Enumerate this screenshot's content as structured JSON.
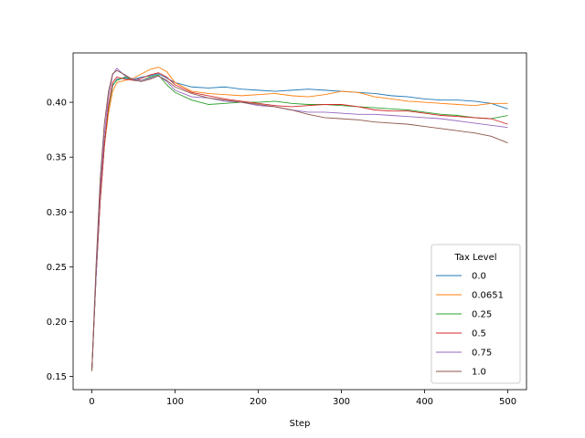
{
  "chart_data": {
    "type": "line",
    "title": "",
    "xlabel": "Step",
    "ylabel": "",
    "xlim": [
      -22.5,
      522.5
    ],
    "ylim": [
      0.138,
      0.445
    ],
    "xticks": [
      0,
      100,
      200,
      300,
      400,
      500
    ],
    "xtick_labels": [
      "0",
      "100",
      "200",
      "300",
      "400",
      "500"
    ],
    "yticks": [
      0.15,
      0.2,
      0.25,
      0.3,
      0.35,
      0.4
    ],
    "ytick_labels": [
      "0.15",
      "0.20",
      "0.25",
      "0.30",
      "0.35",
      "0.40"
    ],
    "grid": false,
    "legend": {
      "title": "Tax Level",
      "placement": "lower right"
    },
    "series": [
      {
        "name": "0.0",
        "color": "#1f77b4",
        "x": [
          0,
          5,
          10,
          15,
          20,
          25,
          30,
          40,
          50,
          60,
          70,
          80,
          90,
          100,
          120,
          140,
          160,
          180,
          200,
          220,
          240,
          260,
          280,
          300,
          320,
          340,
          360,
          380,
          400,
          420,
          440,
          460,
          480,
          500
        ],
        "y": [
          0.155,
          0.24,
          0.31,
          0.36,
          0.395,
          0.415,
          0.421,
          0.422,
          0.421,
          0.423,
          0.424,
          0.426,
          0.422,
          0.418,
          0.414,
          0.413,
          0.414,
          0.412,
          0.411,
          0.41,
          0.411,
          0.412,
          0.411,
          0.41,
          0.409,
          0.408,
          0.406,
          0.405,
          0.403,
          0.402,
          0.402,
          0.401,
          0.399,
          0.394
        ]
      },
      {
        "name": "0.0651",
        "color": "#ff7f0e",
        "x": [
          0,
          5,
          10,
          15,
          20,
          25,
          30,
          40,
          50,
          60,
          70,
          80,
          90,
          100,
          120,
          140,
          160,
          180,
          200,
          220,
          240,
          260,
          280,
          300,
          320,
          340,
          360,
          380,
          400,
          420,
          440,
          460,
          480,
          500
        ],
        "y": [
          0.155,
          0.24,
          0.31,
          0.36,
          0.39,
          0.41,
          0.418,
          0.42,
          0.422,
          0.426,
          0.43,
          0.432,
          0.428,
          0.418,
          0.41,
          0.408,
          0.407,
          0.406,
          0.407,
          0.408,
          0.406,
          0.405,
          0.407,
          0.41,
          0.409,
          0.405,
          0.403,
          0.401,
          0.4,
          0.399,
          0.398,
          0.397,
          0.399,
          0.399
        ]
      },
      {
        "name": "0.25",
        "color": "#2ca02c",
        "x": [
          0,
          5,
          10,
          15,
          20,
          25,
          30,
          40,
          50,
          60,
          70,
          80,
          90,
          100,
          120,
          140,
          160,
          180,
          200,
          220,
          240,
          260,
          280,
          300,
          320,
          340,
          360,
          380,
          400,
          420,
          440,
          460,
          480,
          500
        ],
        "y": [
          0.155,
          0.24,
          0.31,
          0.36,
          0.395,
          0.416,
          0.42,
          0.423,
          0.421,
          0.42,
          0.423,
          0.425,
          0.416,
          0.409,
          0.402,
          0.398,
          0.399,
          0.4,
          0.4,
          0.401,
          0.399,
          0.398,
          0.398,
          0.397,
          0.396,
          0.395,
          0.394,
          0.393,
          0.391,
          0.389,
          0.388,
          0.386,
          0.385,
          0.388
        ]
      },
      {
        "name": "0.5",
        "color": "#d62728",
        "x": [
          0,
          5,
          10,
          15,
          20,
          25,
          30,
          40,
          50,
          60,
          70,
          80,
          90,
          100,
          120,
          140,
          160,
          180,
          200,
          220,
          240,
          260,
          280,
          300,
          320,
          340,
          360,
          380,
          400,
          420,
          440,
          460,
          480,
          500
        ],
        "y": [
          0.155,
          0.24,
          0.31,
          0.36,
          0.397,
          0.418,
          0.423,
          0.421,
          0.42,
          0.422,
          0.425,
          0.427,
          0.423,
          0.416,
          0.409,
          0.406,
          0.403,
          0.401,
          0.399,
          0.397,
          0.396,
          0.397,
          0.398,
          0.398,
          0.396,
          0.393,
          0.392,
          0.392,
          0.39,
          0.388,
          0.387,
          0.386,
          0.385,
          0.38
        ]
      },
      {
        "name": "0.75",
        "color": "#9467bd",
        "x": [
          0,
          5,
          10,
          15,
          20,
          25,
          30,
          40,
          50,
          60,
          70,
          80,
          90,
          100,
          120,
          140,
          160,
          180,
          200,
          220,
          240,
          260,
          280,
          300,
          320,
          340,
          360,
          380,
          400,
          420,
          440,
          460,
          480,
          500
        ],
        "y": [
          0.155,
          0.24,
          0.32,
          0.37,
          0.405,
          0.425,
          0.431,
          0.424,
          0.421,
          0.42,
          0.422,
          0.424,
          0.419,
          0.411,
          0.405,
          0.404,
          0.401,
          0.4,
          0.397,
          0.396,
          0.393,
          0.391,
          0.391,
          0.39,
          0.389,
          0.389,
          0.388,
          0.387,
          0.386,
          0.385,
          0.383,
          0.381,
          0.379,
          0.377
        ]
      },
      {
        "name": "1.0",
        "color": "#8c564b",
        "x": [
          0,
          5,
          10,
          15,
          20,
          25,
          30,
          40,
          50,
          60,
          70,
          80,
          90,
          100,
          120,
          140,
          160,
          180,
          200,
          220,
          240,
          260,
          280,
          300,
          320,
          340,
          360,
          380,
          400,
          420,
          440,
          460,
          480,
          500
        ],
        "y": [
          0.155,
          0.25,
          0.33,
          0.38,
          0.41,
          0.426,
          0.429,
          0.425,
          0.42,
          0.419,
          0.421,
          0.424,
          0.42,
          0.414,
          0.408,
          0.404,
          0.402,
          0.4,
          0.398,
          0.396,
          0.393,
          0.389,
          0.386,
          0.385,
          0.384,
          0.382,
          0.381,
          0.38,
          0.378,
          0.376,
          0.374,
          0.372,
          0.369,
          0.363
        ]
      }
    ]
  }
}
